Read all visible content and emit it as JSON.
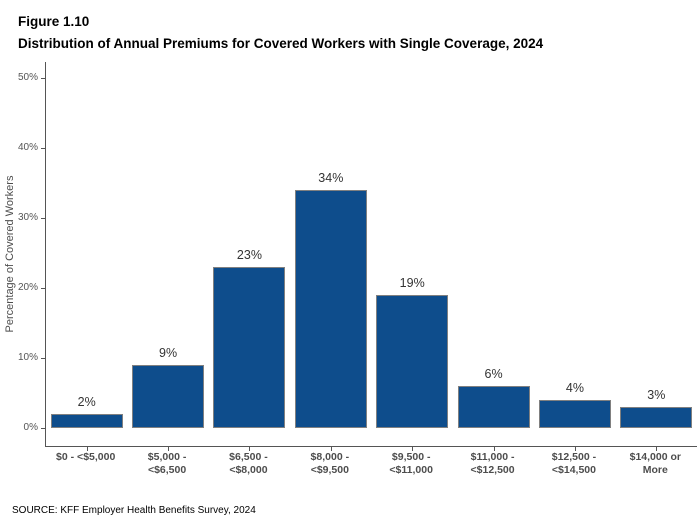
{
  "header": {
    "figure_label": "Figure 1.10",
    "title": "Distribution of Annual Premiums for Covered Workers with Single Coverage, 2024"
  },
  "chart_data": {
    "type": "bar",
    "title": "Distribution of Annual Premiums for Covered Workers with Single Coverage, 2024",
    "categories": [
      "$0 - <$5,000",
      "$5,000 - <$6,500",
      "$6,500 - <$8,000",
      "$8,000 - <$9,500",
      "$9,500 - <$11,000",
      "$11,000 - <$12,500",
      "$12,500 - <$14,500",
      "$14,000 or More"
    ],
    "category_display_lines": [
      [
        "$0 - <$5,000"
      ],
      [
        "$5,000 -",
        "<$6,500"
      ],
      [
        "$6,500 -",
        "<$8,000"
      ],
      [
        "$8,000 -",
        "<$9,500"
      ],
      [
        "$9,500 -",
        "<$11,000"
      ],
      [
        "$11,000 -",
        "<$12,500"
      ],
      [
        "$12,500 -",
        "<$14,500"
      ],
      [
        "$14,000 or",
        "More"
      ]
    ],
    "values": [
      2,
      9,
      23,
      34,
      19,
      6,
      4,
      3
    ],
    "value_labels": [
      "2%",
      "9%",
      "23%",
      "34%",
      "19%",
      "6%",
      "4%",
      "3%"
    ],
    "xlabel": "",
    "ylabel": "Percentage of Covered Workers",
    "yticks": [
      0,
      10,
      20,
      30,
      40,
      50
    ],
    "ytick_labels": [
      "0%",
      "10%",
      "20%",
      "30%",
      "40%",
      "50%"
    ],
    "ylim": [
      0,
      52.5
    ],
    "grid": false,
    "legend_position": "none",
    "bar_color": "#0E4D8C",
    "bar_border_color": "#808080"
  },
  "footer": {
    "source": "SOURCE: KFF Employer Health Benefits Survey, 2024"
  }
}
